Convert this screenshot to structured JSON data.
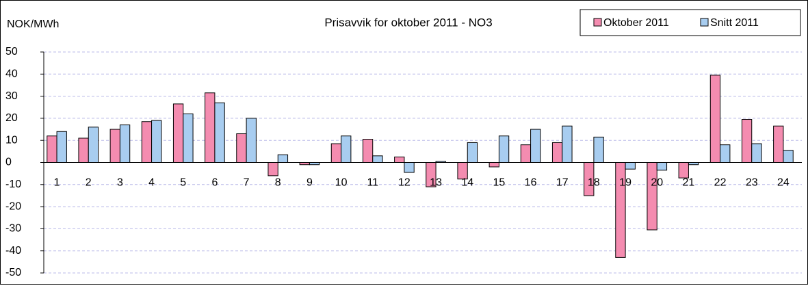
{
  "chart_data": {
    "type": "bar",
    "title": "Prisavvik for oktober 2011 - NO3",
    "y_label": "NOK/MWh",
    "categories": [
      "1",
      "2",
      "3",
      "4",
      "5",
      "6",
      "7",
      "8",
      "9",
      "10",
      "11",
      "12",
      "13",
      "14",
      "15",
      "16",
      "17",
      "18",
      "19",
      "20",
      "21",
      "22",
      "23",
      "24"
    ],
    "series": [
      {
        "name": "Oktober 2011",
        "color": "#f48cb0",
        "values": [
          12,
          11,
          15,
          18.5,
          26.5,
          31.5,
          13,
          -6,
          -1,
          8.5,
          10.5,
          2.5,
          -11,
          -7.5,
          -2,
          8,
          9,
          -15,
          -43,
          -30.5,
          -7,
          39.5,
          19.5,
          16.5
        ]
      },
      {
        "name": "Snitt 2011",
        "color": "#a8cdf0",
        "values": [
          14,
          16,
          17,
          19,
          22,
          27,
          20,
          3.5,
          -1,
          12,
          3,
          -4.5,
          0.5,
          9,
          12,
          15,
          16.5,
          11.5,
          -3,
          -3.5,
          -1,
          8,
          8.5,
          5.5
        ]
      }
    ],
    "ylim": [
      -50,
      50
    ],
    "yticks": [
      -50,
      -40,
      -30,
      -20,
      -10,
      0,
      10,
      20,
      30,
      40,
      50
    ],
    "grid": true,
    "legend": "top-right"
  }
}
